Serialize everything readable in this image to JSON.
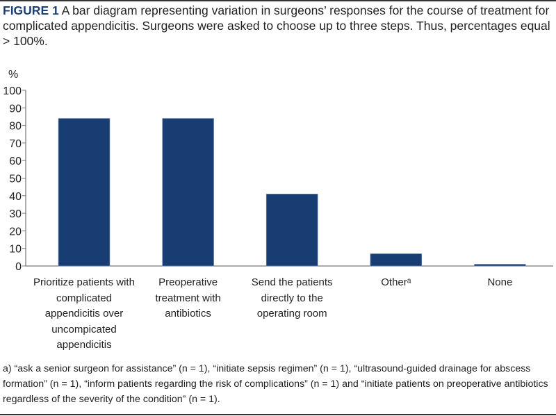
{
  "caption": {
    "label": "FIGURE 1",
    "text": " A bar diagram representing variation in surgeons’ responses for the course of treatment for complicated appendicitis. Surgeons were asked to choose up to three steps. Thus, percentages equal > 100%."
  },
  "footnote": "a) “ask a senior surgeon for assistance” (n = 1), “initiate sepsis regimen” (n = 1), “ultrasound-guided drainage for abscess formation” (n = 1), “inform patients regarding the risk of complications” (n = 1) and “initiate patients on preoperative antibiotics regardless of the severity of the condition” (n = 1).",
  "chart_data": {
    "type": "bar",
    "title": "",
    "ylabel": "%",
    "xlabel": "",
    "ylim": [
      0,
      100
    ],
    "yticks": [
      "0",
      "10",
      "20",
      "30",
      "40",
      "50",
      "60",
      "70",
      "80",
      "90",
      "100"
    ],
    "categories": [
      "Prioritize patients with complicated appendicitis over uncompicated appendicitis",
      "Preoperative treatment with antibiotics",
      "Send the patients directly to the operating room",
      "Otherᵃ",
      "None"
    ],
    "values": [
      84,
      84,
      41,
      7,
      1
    ],
    "bar_color": "#173d73",
    "grid": false
  }
}
